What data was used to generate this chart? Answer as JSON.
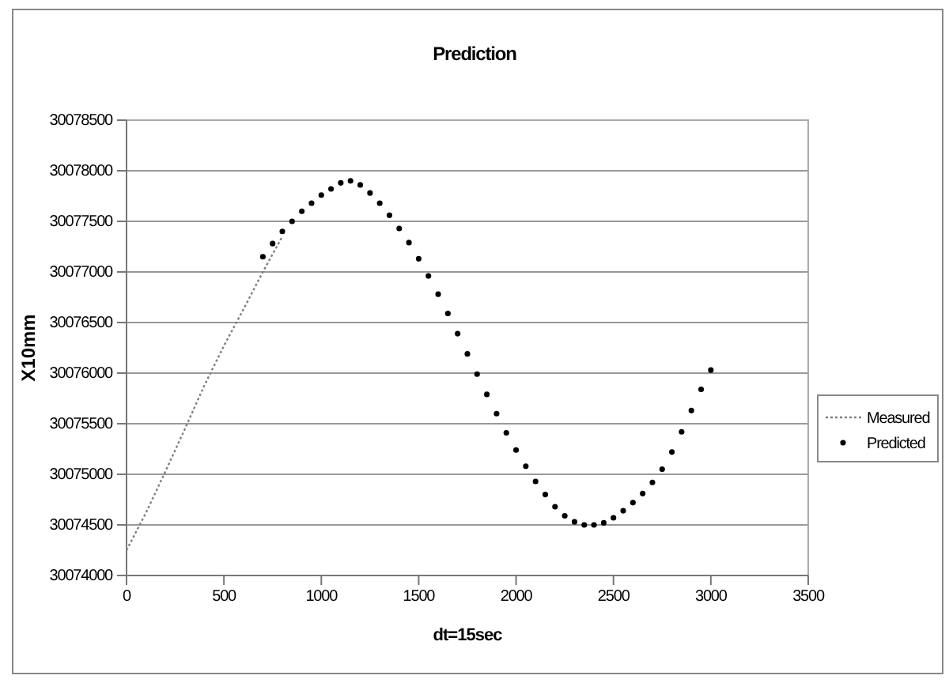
{
  "chart_data": {
    "type": "line",
    "title": "Prediction",
    "xlabel": "dt=15sec",
    "ylabel": "X10mm",
    "xlim": [
      0,
      3500
    ],
    "xticks": [
      0,
      500,
      1000,
      1500,
      2000,
      2500,
      3000,
      3500
    ],
    "ylim": [
      30074000,
      30078500
    ],
    "yticks": [
      30074000,
      30074500,
      30075000,
      30075500,
      30076000,
      30076500,
      30077000,
      30077500,
      30078000,
      30078500
    ],
    "grid": "y",
    "legend": "right",
    "series": [
      {
        "name": "Measured",
        "color": "#808080",
        "line_style": "dotted",
        "x": [
          0,
          100,
          200,
          300,
          400,
          500,
          600,
          700,
          800
        ],
        "values": [
          30074250,
          30074620,
          30075030,
          30075450,
          30075880,
          30076270,
          30076630,
          30077000,
          30077350
        ]
      },
      {
        "name": "Predicted",
        "type": "scatter",
        "color": "#000000",
        "marker": "circle",
        "x": [
          700,
          750,
          800,
          850,
          900,
          950,
          1000,
          1050,
          1100,
          1150,
          1200,
          1250,
          1300,
          1350,
          1400,
          1450,
          1500,
          1550,
          1600,
          1650,
          1700,
          1750,
          1800,
          1850,
          1900,
          1950,
          2000,
          2050,
          2100,
          2150,
          2200,
          2250,
          2300,
          2350,
          2400,
          2450,
          2500,
          2550,
          2600,
          2650,
          2700,
          2750,
          2800,
          2850,
          2900,
          2950,
          3000
        ],
        "values": [
          30077150,
          30077280,
          30077400,
          30077500,
          30077600,
          30077680,
          30077760,
          30077820,
          30077880,
          30077900,
          30077860,
          30077780,
          30077680,
          30077560,
          30077430,
          30077290,
          30077130,
          30076960,
          30076780,
          30076590,
          30076390,
          30076190,
          30075990,
          30075790,
          30075600,
          30075410,
          30075240,
          30075080,
          30074930,
          30074800,
          30074680,
          30074590,
          30074530,
          30074500,
          30074500,
          30074520,
          30074570,
          30074640,
          30074720,
          30074810,
          30074920,
          30075050,
          30075220,
          30075420,
          30075630,
          30075840,
          30076030
        ]
      }
    ]
  }
}
